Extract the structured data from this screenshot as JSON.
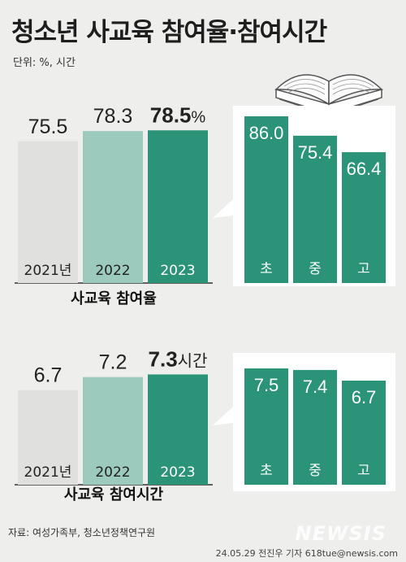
{
  "title": "청소년 사교육 참여율·참여시간",
  "unit_label": "단위: %, 시간",
  "source": "자료: 여성가족부, 청소년정책연구원",
  "credit": "24.05.29 전진우 기자 618tue@newsis.com",
  "watermark": "NEWSIS",
  "colors": {
    "bar_2021": "#e0e0de",
    "bar_2022": "#9ccabd",
    "bar_2023": "#2b9478",
    "school": "#2b9478",
    "bg": "#eeeeec"
  },
  "chart_data": [
    {
      "type": "bar",
      "title": "사교육 참여율",
      "categories": [
        "2021년",
        "2022",
        "2023"
      ],
      "values": [
        75.5,
        78.3,
        78.5
      ],
      "value_labels": [
        "75.5",
        "78.3",
        "78.5"
      ],
      "last_suffix": "%",
      "ylim": [
        0,
        100
      ]
    },
    {
      "type": "bar",
      "categories": [
        "초",
        "중",
        "고"
      ],
      "values": [
        86.0,
        75.4,
        66.4
      ],
      "value_labels": [
        "86.0",
        "75.4",
        "66.4"
      ],
      "ylim": [
        0,
        100
      ]
    },
    {
      "type": "bar",
      "title": "사교육 참여시간",
      "categories": [
        "2021년",
        "2022",
        "2023"
      ],
      "values": [
        6.7,
        7.2,
        7.3
      ],
      "value_labels": [
        "6.7",
        "7.2",
        "7.3"
      ],
      "last_suffix": "시간",
      "ylim": [
        0,
        10
      ]
    },
    {
      "type": "bar",
      "categories": [
        "초",
        "중",
        "고"
      ],
      "values": [
        7.5,
        7.4,
        6.7
      ],
      "value_labels": [
        "7.5",
        "7.4",
        "6.7"
      ],
      "ylim": [
        0,
        10
      ]
    }
  ]
}
